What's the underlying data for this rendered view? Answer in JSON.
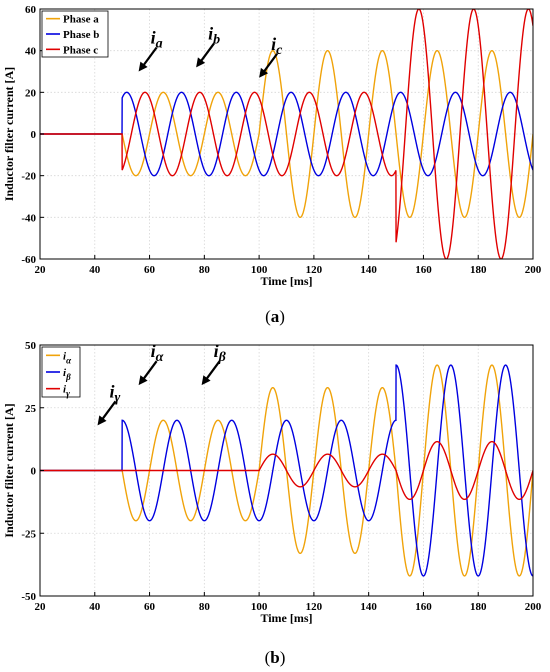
{
  "chart_data": [
    {
      "type": "line",
      "panel_label": "(a)",
      "xlabel": "Time [ms]",
      "ylabel": "Inductor filter current [A]",
      "xlim": [
        20,
        200
      ],
      "ylim": [
        -60,
        60
      ],
      "xticks": [
        20,
        40,
        60,
        80,
        100,
        120,
        140,
        160,
        180,
        200
      ],
      "yticks": [
        -60,
        -40,
        -20,
        0,
        20,
        40,
        60
      ],
      "grid": true,
      "legend": "top-left",
      "series": [
        {
          "name": "Phase a",
          "color": "#f0a30a",
          "phase_deg": 0,
          "segments": [
            {
              "from": 20,
              "to": 50,
              "amp": 0
            },
            {
              "from": 50,
              "to": 100,
              "amp": 20
            },
            {
              "from": 100,
              "to": 150,
              "amp": 40
            },
            {
              "from": 150,
              "to": 200,
              "amp": 40
            }
          ]
        },
        {
          "name": "Phase b",
          "color": "#0000e0",
          "phase_deg": -120,
          "segments": [
            {
              "from": 20,
              "to": 50,
              "amp": 0
            },
            {
              "from": 50,
              "to": 100,
              "amp": 20
            },
            {
              "from": 100,
              "to": 150,
              "amp": 20
            },
            {
              "from": 150,
              "to": 200,
              "amp": 20
            }
          ]
        },
        {
          "name": "Phase c",
          "color": "#e00000",
          "phase_deg": 120,
          "segments": [
            {
              "from": 20,
              "to": 50,
              "amp": 0
            },
            {
              "from": 50,
              "to": 100,
              "amp": 20
            },
            {
              "from": 100,
              "to": 150,
              "amp": 20
            },
            {
              "from": 150,
              "to": 200,
              "amp": 60
            }
          ]
        }
      ],
      "annotations": [
        {
          "base": "i",
          "sub": "a",
          "x": 56,
          "y": 30
        },
        {
          "base": "i",
          "sub": "b",
          "x": 77,
          "y": 32
        },
        {
          "base": "i",
          "sub": "c",
          "x": 100,
          "y": 27
        }
      ]
    },
    {
      "type": "line",
      "panel_label": "(b)",
      "xlabel": "Time [ms]",
      "ylabel": "Inductor filter current [A]",
      "xlim": [
        20,
        200
      ],
      "ylim": [
        -50,
        50
      ],
      "xticks": [
        20,
        40,
        60,
        80,
        100,
        120,
        140,
        160,
        180,
        200
      ],
      "yticks": [
        -50,
        -25,
        0,
        25,
        50
      ],
      "grid": true,
      "legend": "top-left",
      "series": [
        {
          "name": "iα",
          "base": "i",
          "sub": "α",
          "color": "#f0a30a",
          "phase_deg": 0,
          "segments": [
            {
              "from": 20,
              "to": 50,
              "amp": 0
            },
            {
              "from": 50,
              "to": 100,
              "amp": 20
            },
            {
              "from": 100,
              "to": 150,
              "amp": 33
            },
            {
              "from": 150,
              "to": 200,
              "amp": 42
            }
          ]
        },
        {
          "name": "iβ",
          "base": "i",
          "sub": "β",
          "color": "#0000e0",
          "phase_deg": -90,
          "segments": [
            {
              "from": 20,
              "to": 50,
              "amp": 0
            },
            {
              "from": 50,
              "to": 100,
              "amp": 20
            },
            {
              "from": 100,
              "to": 150,
              "amp": 20
            },
            {
              "from": 150,
              "to": 200,
              "amp": 42
            }
          ]
        },
        {
          "name": "iγ",
          "base": "i",
          "sub": "γ",
          "color": "#e00000",
          "phase_deg": 0,
          "segments": [
            {
              "from": 20,
              "to": 50,
              "amp": 0
            },
            {
              "from": 50,
              "to": 100,
              "amp": 0
            },
            {
              "from": 100,
              "to": 150,
              "amp": 6.5
            },
            {
              "from": 150,
              "to": 200,
              "amp": 11.5
            }
          ]
        }
      ],
      "annotations": [
        {
          "base": "i",
          "sub": "α",
          "x": 56,
          "y": 34
        },
        {
          "base": "i",
          "sub": "β",
          "x": 79,
          "y": 34
        },
        {
          "base": "i",
          "sub": "γ",
          "x": 41,
          "y": 18
        }
      ]
    }
  ],
  "frequency_hz": 50
}
